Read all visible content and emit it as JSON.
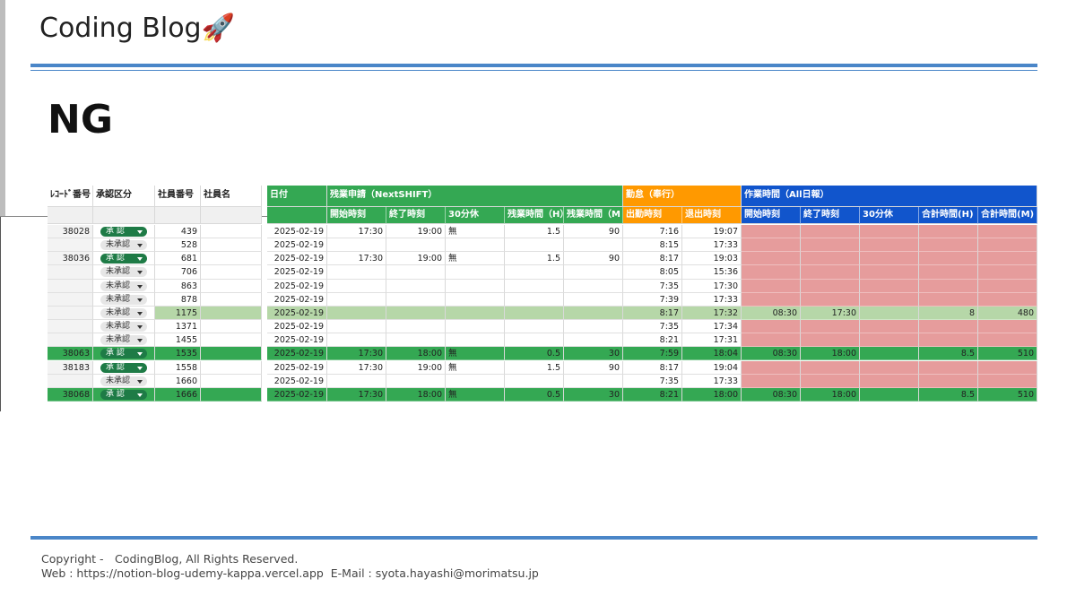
{
  "header": {
    "title": "Coding Blog🚀"
  },
  "heading": "NG",
  "table": {
    "groups": [
      {
        "label": "ﾚｺｰﾄﾞ番号"
      },
      {
        "label": "承認区分"
      },
      {
        "label": "社員番号"
      },
      {
        "label": "社員名"
      },
      {
        "label": "日付",
        "color": "#34a853"
      },
      {
        "label": "残業申請（NextSHIFT）",
        "color": "#34a853",
        "columns": [
          "開始時刻",
          "終了時刻",
          "30分休",
          "残業時間（H）",
          "残業時間（M"
        ]
      },
      {
        "label": "勤怠（奉行）",
        "color": "#ff9900",
        "columns": [
          "出勤時刻",
          "退出時刻"
        ]
      },
      {
        "label": "作業時間（All日報）",
        "color": "#1155cc",
        "columns": [
          "開始時刻",
          "終了時刻",
          "30分休",
          "合計時間(H)",
          "合計時間(M)"
        ]
      }
    ],
    "rows": [
      [
        "38028",
        "承 認",
        "439",
        null,
        "2025-02-19",
        "17:30",
        "19:00",
        "無",
        "1.5",
        "90",
        "7:16",
        "19:07",
        null,
        null,
        null,
        null,
        null
      ],
      [
        null,
        "未承認",
        "528",
        null,
        "2025-02-19",
        null,
        null,
        null,
        null,
        null,
        "8:15",
        "17:33",
        null,
        null,
        null,
        null,
        null
      ],
      [
        "38036",
        "承 認",
        "681",
        null,
        "2025-02-19",
        "17:30",
        "19:00",
        "無",
        "1.5",
        "90",
        "8:17",
        "19:03",
        null,
        null,
        null,
        null,
        null
      ],
      [
        null,
        "未承認",
        "706",
        null,
        "2025-02-19",
        null,
        null,
        null,
        null,
        null,
        "8:05",
        "15:36",
        null,
        null,
        null,
        null,
        null
      ],
      [
        null,
        "未承認",
        "863",
        null,
        "2025-02-19",
        null,
        null,
        null,
        null,
        null,
        "7:35",
        "17:30",
        null,
        null,
        null,
        null,
        null
      ],
      [
        null,
        "未承認",
        "878",
        null,
        "2025-02-19",
        null,
        null,
        null,
        null,
        null,
        "7:39",
        "17:33",
        null,
        null,
        null,
        null,
        null
      ],
      [
        null,
        "未承認",
        "1175",
        null,
        "2025-02-19",
        null,
        null,
        null,
        null,
        null,
        "8:17",
        "17:32",
        "08:30",
        "17:30",
        null,
        "8",
        "480"
      ],
      [
        null,
        "未承認",
        "1371",
        null,
        "2025-02-19",
        null,
        null,
        null,
        null,
        null,
        "7:35",
        "17:34",
        null,
        null,
        null,
        null,
        null
      ],
      [
        null,
        "未承認",
        "1455",
        null,
        "2025-02-19",
        null,
        null,
        null,
        null,
        null,
        "8:21",
        "17:31",
        null,
        null,
        null,
        null,
        null
      ],
      [
        "38063",
        "承 認",
        "1535",
        null,
        "2025-02-19",
        "17:30",
        "18:00",
        "無",
        "0.5",
        "30",
        "7:59",
        "18:04",
        "08:30",
        "18:00",
        null,
        "8.5",
        "510"
      ],
      [
        "38183",
        "承 認",
        "1558",
        null,
        "2025-02-19",
        "17:30",
        "19:00",
        "無",
        "1.5",
        "90",
        "8:17",
        "19:04",
        null,
        null,
        null,
        null,
        null
      ],
      [
        null,
        "未承認",
        "1660",
        null,
        "2025-02-19",
        null,
        null,
        null,
        null,
        null,
        "7:35",
        "17:33",
        null,
        null,
        null,
        null,
        null
      ],
      [
        "38068",
        "承 認",
        "1666",
        null,
        "2025-02-19",
        "17:30",
        "18:00",
        "無",
        "0.5",
        "30",
        "8:21",
        "18:00",
        "08:30",
        "18:00",
        null,
        "8.5",
        "510"
      ]
    ]
  },
  "footer": {
    "copyright": "Copyright -　CodingBlog, All Rights Reserved.",
    "contact": "Web : https://notion-blog-udemy-kappa.vercel.app  E-Mail : syota.hayashi@morimatsu.jp"
  }
}
